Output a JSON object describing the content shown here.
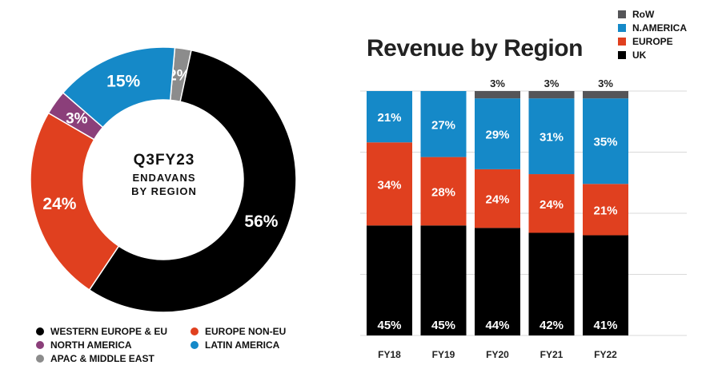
{
  "chart_data": [
    {
      "type": "pie",
      "title": "Q3FY23",
      "subtitle_line1": "ENDAVANS",
      "subtitle_line2": "BY REGION",
      "slices": [
        {
          "label": "WESTERN EUROPE & EU",
          "value": 56,
          "display": "56%",
          "color": "#000000"
        },
        {
          "label": "EUROPE NON-EU",
          "value": 24,
          "display": "24%",
          "color": "#e0401f"
        },
        {
          "label": "NORTH AMERICA",
          "value": 3,
          "display": "3%",
          "color": "#8b3f7a"
        },
        {
          "label": "LATIN AMERICA",
          "value": 15,
          "display": "15%",
          "color": "#1589c8"
        },
        {
          "label": "APAC & MIDDLE EAST",
          "value": 2,
          "display": "2%",
          "color": "#8c8c8c"
        }
      ],
      "legend_placement": "bottom"
    },
    {
      "type": "bar",
      "stacked": true,
      "title": "Revenue by Region",
      "categories": [
        "FY18",
        "FY19",
        "FY20",
        "FY21",
        "FY22"
      ],
      "series": [
        {
          "name": "UK",
          "color": "#000000",
          "values": [
            45,
            45,
            44,
            42,
            41
          ]
        },
        {
          "name": "EUROPE",
          "color": "#e0401f",
          "values": [
            34,
            28,
            24,
            24,
            21
          ]
        },
        {
          "name": "N.AMERICA",
          "color": "#1589c8",
          "values": [
            21,
            27,
            29,
            31,
            35
          ]
        },
        {
          "name": "RoW",
          "color": "#555558",
          "values": [
            0,
            0,
            3,
            3,
            3
          ]
        }
      ],
      "ylim": [
        0,
        100
      ],
      "grid": true,
      "legend_placement": "top-right"
    }
  ],
  "legend_left": [
    {
      "label": "WESTERN EUROPE & EU",
      "color": "#000000"
    },
    {
      "label": "EUROPE NON-EU",
      "color": "#e0401f"
    },
    {
      "label": "NORTH AMERICA",
      "color": "#8b3f7a"
    },
    {
      "label": "LATIN AMERICA",
      "color": "#1589c8"
    },
    {
      "label": "APAC & MIDDLE EAST",
      "color": "#8c8c8c"
    }
  ],
  "legend_right": [
    {
      "label": "RoW",
      "color": "#555558"
    },
    {
      "label": "N.AMERICA",
      "color": "#1589c8"
    },
    {
      "label": "EUROPE",
      "color": "#e0401f"
    },
    {
      "label": "UK",
      "color": "#000000"
    }
  ]
}
